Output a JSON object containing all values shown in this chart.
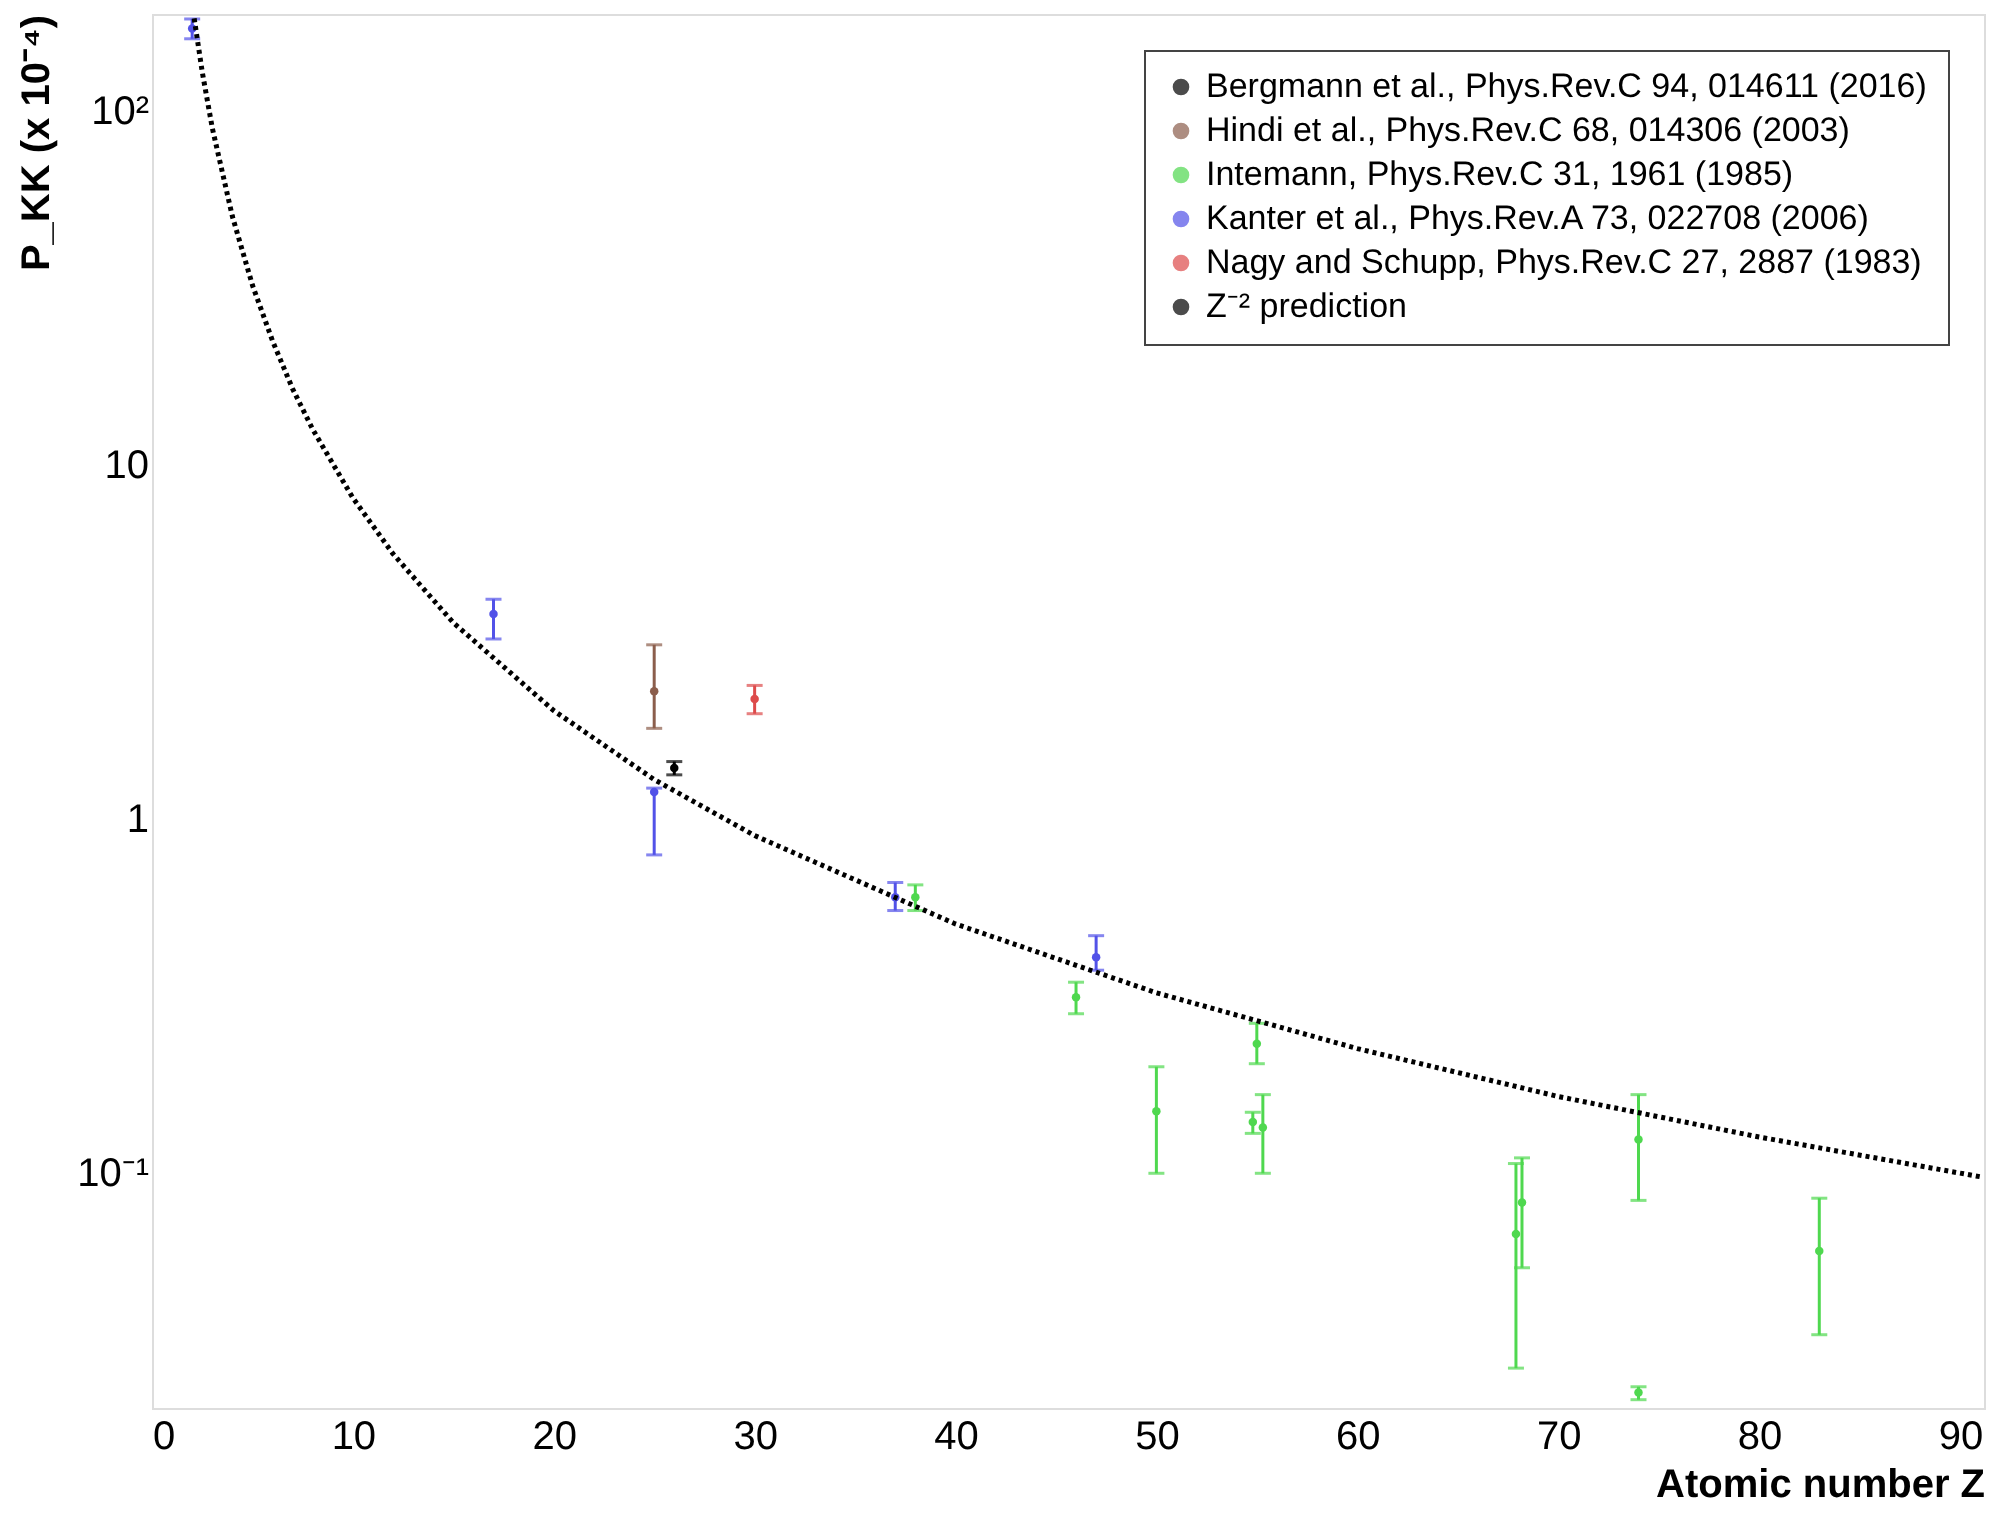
{
  "chart_data": {
    "type": "scatter",
    "xlabel": "Atomic number Z",
    "ylabel": "P_KK (x 10⁻⁴)",
    "xlim": [
      0,
      91.2
    ],
    "ylim": [
      0.0216,
      188
    ],
    "log": "y",
    "grid": false,
    "legend": "top right",
    "marker": "circle",
    "xticks": [
      0,
      10,
      20,
      30,
      40,
      50,
      60,
      70,
      80,
      90
    ],
    "yticks": [
      {
        "value": 0.1,
        "label": "10⁻¹"
      },
      1,
      10,
      {
        "value": 100,
        "label": "10²"
      }
    ],
    "series": [
      {
        "name": "Bergmann et al., Phys.Rev.C 94, 014611 (2016)",
        "type": "scatter",
        "color": "#000000",
        "x": [
          26
        ],
        "values": [
          1.39
        ],
        "errors": [
          [
            1.33,
            1.45
          ]
        ]
      },
      {
        "name": "Hindi et al., Phys.Rev.C 68, 014306 (2003)",
        "type": "scatter",
        "color": "#8b5e4c",
        "x": [
          25
        ],
        "values": [
          2.29
        ],
        "errors": [
          [
            1.8,
            3.1
          ]
        ]
      },
      {
        "name": "Intemann, Phys.Rev.C 31, 1961 (1985)",
        "type": "scatter",
        "color": "#4fd84f",
        "x": [
          38,
          46,
          50,
          54.8,
          55,
          55.3,
          67.9,
          68.2,
          74,
          74,
          83
        ],
        "values": [
          0.6,
          0.313,
          0.149,
          0.139,
          0.231,
          0.134,
          0.067,
          0.0823,
          0.124,
          0.0239,
          0.06
        ],
        "errors": [
          [
            0.55,
            0.65
          ],
          [
            0.281,
            0.345
          ],
          [
            0.0995,
            0.199
          ],
          [
            0.129,
            0.148
          ],
          [
            0.203,
            0.264
          ],
          [
            0.0995,
            0.166
          ],
          [
            0.028,
            0.106
          ],
          [
            0.0538,
            0.11
          ],
          [
            0.0834,
            0.166
          ],
          [
            0.0228,
            0.0248
          ],
          [
            0.0348,
            0.0846
          ]
        ]
      },
      {
        "name": "Kanter et al., Phys.Rev.A 73, 022708 (2006)",
        "type": "scatter",
        "color": "#5252e8",
        "x": [
          2,
          17,
          25,
          37,
          47
        ],
        "values": [
          171,
          3.79,
          1.19,
          0.6,
          0.406
        ],
        "errors": [
          [
            160,
            182
          ],
          [
            3.22,
            4.17
          ],
          [
            0.79,
            1.22
          ],
          [
            0.55,
            0.66
          ],
          [
            0.373,
            0.467
          ]
        ]
      },
      {
        "name": "Nagy and Schupp, Phys.Rev.C 27, 2887 (1983)",
        "type": "scatter",
        "color": "#dd4b4b",
        "x": [
          30
        ],
        "values": [
          2.18
        ],
        "errors": [
          [
            1.98,
            2.38
          ]
        ]
      },
      {
        "name": "Z⁻² prediction",
        "type": "line",
        "color": "#000000",
        "line_style": "dotted",
        "marker": "none",
        "x": [
          2.1,
          2.5,
          3,
          4,
          5,
          6,
          7,
          8,
          10,
          12,
          15,
          20,
          25,
          30,
          40,
          50,
          60,
          70,
          80,
          91
        ],
        "values": [
          182.8,
          129,
          89.6,
          50.4,
          32.2,
          22.4,
          16.4,
          12.6,
          8.06,
          5.6,
          3.58,
          2.02,
          1.29,
          0.896,
          0.504,
          0.322,
          0.224,
          0.164,
          0.126,
          0.0973
        ]
      }
    ]
  }
}
